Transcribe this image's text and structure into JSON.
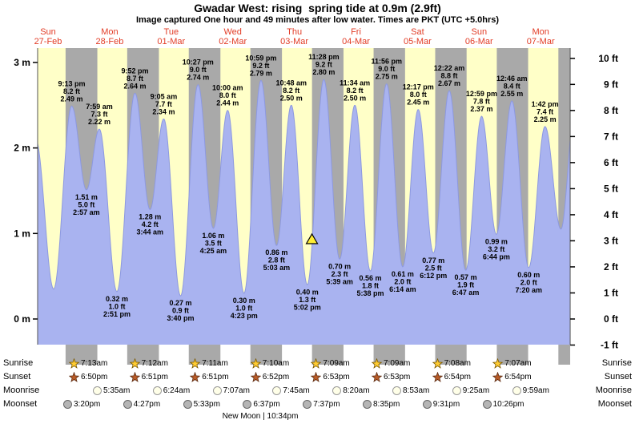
{
  "title": "Gwadar West: rising  spring tide at 0.9m (2.9ft)",
  "subtitle": "Image captured One hour and 49 minutes after low water. Times are PKT (UTC +5.0hrs)",
  "colors": {
    "day_bg": "#ffffc8",
    "night_bg": "#a9a9a9",
    "tide_fill": "#a9b3f0",
    "tide_edge": "#8d99e0",
    "label_red": "#e23c26",
    "marker_fill": "#ffee33",
    "sunrise_star": "#ffcc33",
    "sunset_star": "#b95c28",
    "moonrise_circle": "#ffffe8",
    "moonset_circle": "#b5b5b5"
  },
  "chart_data": {
    "type": "area",
    "y_axis_left": {
      "unit": "m",
      "min": 0,
      "max": 3,
      "ticks": [
        "0 m",
        "1 m",
        "2 m",
        "3 m"
      ]
    },
    "y_axis_right": {
      "unit": "ft",
      "min": -1,
      "max": 10,
      "ticks": [
        "-1 ft",
        "0 ft",
        "1 ft",
        "2 ft",
        "3 ft",
        "4 ft",
        "5 ft",
        "6 ft",
        "7 ft",
        "8 ft",
        "9 ft",
        "10 ft"
      ]
    },
    "days": [
      {
        "name": "Sun",
        "date": "27-Feb"
      },
      {
        "name": "Mon",
        "date": "28-Feb"
      },
      {
        "name": "Tue",
        "date": "01-Mar"
      },
      {
        "name": "Wed",
        "date": "02-Mar"
      },
      {
        "name": "Thu",
        "date": "03-Mar"
      },
      {
        "name": "Fri",
        "date": "04-Mar"
      },
      {
        "name": "Sat",
        "date": "05-Mar"
      },
      {
        "name": "Sun",
        "date": "06-Mar"
      },
      {
        "name": "Mon",
        "date": "07-Mar"
      }
    ],
    "tide_events": [
      {
        "time": "9:13 pm",
        "t_hours": 21.22,
        "height_m": 2.49,
        "height_ft": 8.2,
        "type": "high"
      },
      {
        "time": "2:57 am",
        "t_hours": 26.95,
        "height_m": 1.51,
        "height_ft": 5.0,
        "type": "low"
      },
      {
        "time": "7:59 am",
        "t_hours": 31.98,
        "height_m": 2.22,
        "height_ft": 7.3,
        "type": "high"
      },
      {
        "time": "2:51 pm",
        "t_hours": 38.85,
        "height_m": 0.32,
        "height_ft": 1.0,
        "type": "low"
      },
      {
        "time": "9:52 pm",
        "t_hours": 45.87,
        "height_m": 2.64,
        "height_ft": 8.7,
        "type": "high"
      },
      {
        "time": "3:44 am",
        "t_hours": 51.73,
        "height_m": 1.28,
        "height_ft": 4.2,
        "type": "low"
      },
      {
        "time": "9:05 am",
        "t_hours": 57.08,
        "height_m": 2.34,
        "height_ft": 7.7,
        "type": "high"
      },
      {
        "time": "3:40 pm",
        "t_hours": 63.67,
        "height_m": 0.27,
        "height_ft": 0.9,
        "type": "low"
      },
      {
        "time": "10:27 pm",
        "t_hours": 70.45,
        "height_m": 2.74,
        "height_ft": 9.0,
        "type": "high"
      },
      {
        "time": "4:25 am",
        "t_hours": 76.42,
        "height_m": 1.06,
        "height_ft": 3.5,
        "type": "low"
      },
      {
        "time": "10:00 am",
        "t_hours": 82.0,
        "height_m": 2.44,
        "height_ft": 8.0,
        "type": "high"
      },
      {
        "time": "4:23 pm",
        "t_hours": 88.38,
        "height_m": 0.3,
        "height_ft": 1.0,
        "type": "low"
      },
      {
        "time": "10:59 pm",
        "t_hours": 94.98,
        "height_m": 2.79,
        "height_ft": 9.2,
        "type": "high"
      },
      {
        "time": "5:03 am",
        "t_hours": 101.05,
        "height_m": 0.86,
        "height_ft": 2.8,
        "type": "low"
      },
      {
        "time": "10:48 am",
        "t_hours": 106.8,
        "height_m": 2.5,
        "height_ft": 8.2,
        "type": "high"
      },
      {
        "time": "5:02 pm",
        "t_hours": 113.03,
        "height_m": 0.4,
        "height_ft": 1.3,
        "type": "low"
      },
      {
        "time": "11:28 pm",
        "t_hours": 119.47,
        "height_m": 2.8,
        "height_ft": 9.2,
        "type": "high"
      },
      {
        "time": "5:39 am",
        "t_hours": 125.65,
        "height_m": 0.7,
        "height_ft": 2.3,
        "type": "low"
      },
      {
        "time": "11:34 am",
        "t_hours": 131.57,
        "height_m": 2.5,
        "height_ft": 8.2,
        "type": "high"
      },
      {
        "time": "5:38 pm",
        "t_hours": 137.63,
        "height_m": 0.56,
        "height_ft": 1.8,
        "type": "low"
      },
      {
        "time": "11:56 pm",
        "t_hours": 143.93,
        "height_m": 2.75,
        "height_ft": 9.0,
        "type": "high"
      },
      {
        "time": "6:14 am",
        "t_hours": 150.23,
        "height_m": 0.61,
        "height_ft": 2.0,
        "type": "low"
      },
      {
        "time": "12:17 pm",
        "t_hours": 156.28,
        "height_m": 2.45,
        "height_ft": 8.0,
        "type": "high"
      },
      {
        "time": "6:12 pm",
        "t_hours": 162.2,
        "height_m": 0.77,
        "height_ft": 2.5,
        "type": "low"
      },
      {
        "time": "12:22 am",
        "t_hours": 168.37,
        "height_m": 2.67,
        "height_ft": 8.8,
        "type": "high"
      },
      {
        "time": "6:47 am",
        "t_hours": 174.78,
        "height_m": 0.57,
        "height_ft": 1.9,
        "type": "low"
      },
      {
        "time": "12:59 pm",
        "t_hours": 180.98,
        "height_m": 2.37,
        "height_ft": 7.8,
        "type": "high"
      },
      {
        "time": "6:44 pm",
        "t_hours": 186.73,
        "height_m": 0.99,
        "height_ft": 3.2,
        "type": "low"
      },
      {
        "time": "12:46 am",
        "t_hours": 192.77,
        "height_m": 2.55,
        "height_ft": 8.4,
        "type": "high"
      },
      {
        "time": "7:20 am",
        "t_hours": 199.33,
        "height_m": 0.6,
        "height_ft": 2.0,
        "type": "low"
      },
      {
        "time": "1:42 pm",
        "t_hours": 205.7,
        "height_m": 2.25,
        "height_ft": 7.4,
        "type": "high"
      }
    ],
    "edge_anchors_estimated": [
      {
        "t_hours": 7.2,
        "height_m": 2.1
      },
      {
        "t_hours": 14.2,
        "height_m": 0.35
      },
      {
        "t_hours": 211.9,
        "height_m": 1.05
      },
      {
        "t_hours": 217.3,
        "height_m": 2.45
      }
    ],
    "current_marker": {
      "t_hours": 114.85,
      "height_m": 0.9
    }
  },
  "astro": {
    "rows": [
      {
        "label": "Sunrise",
        "icon": "sunrise-star",
        "times": [
          "7:13am",
          "7:12am",
          "7:11am",
          "7:10am",
          "7:09am",
          "7:09am",
          "7:08am",
          "7:07am"
        ]
      },
      {
        "label": "Sunset",
        "icon": "sunset-star",
        "times": [
          "6:50pm",
          "6:51pm",
          "6:51pm",
          "6:52pm",
          "6:53pm",
          "6:53pm",
          "6:54pm",
          "6:54pm"
        ]
      },
      {
        "label": "Moonrise",
        "icon": "moonrise-circle",
        "times": [
          "5:35am",
          "6:24am",
          "7:07am",
          "7:45am",
          "8:20am",
          "8:53am",
          "9:25am",
          "9:59am"
        ]
      },
      {
        "label": "Moonset",
        "icon": "moonset-circle",
        "times": [
          "3:20pm",
          "4:27pm",
          "5:33pm",
          "6:37pm",
          "7:37pm",
          "8:35pm",
          "9:31pm",
          "10:26pm"
        ]
      }
    ],
    "moon_phase": "New Moon | 10:34pm"
  }
}
